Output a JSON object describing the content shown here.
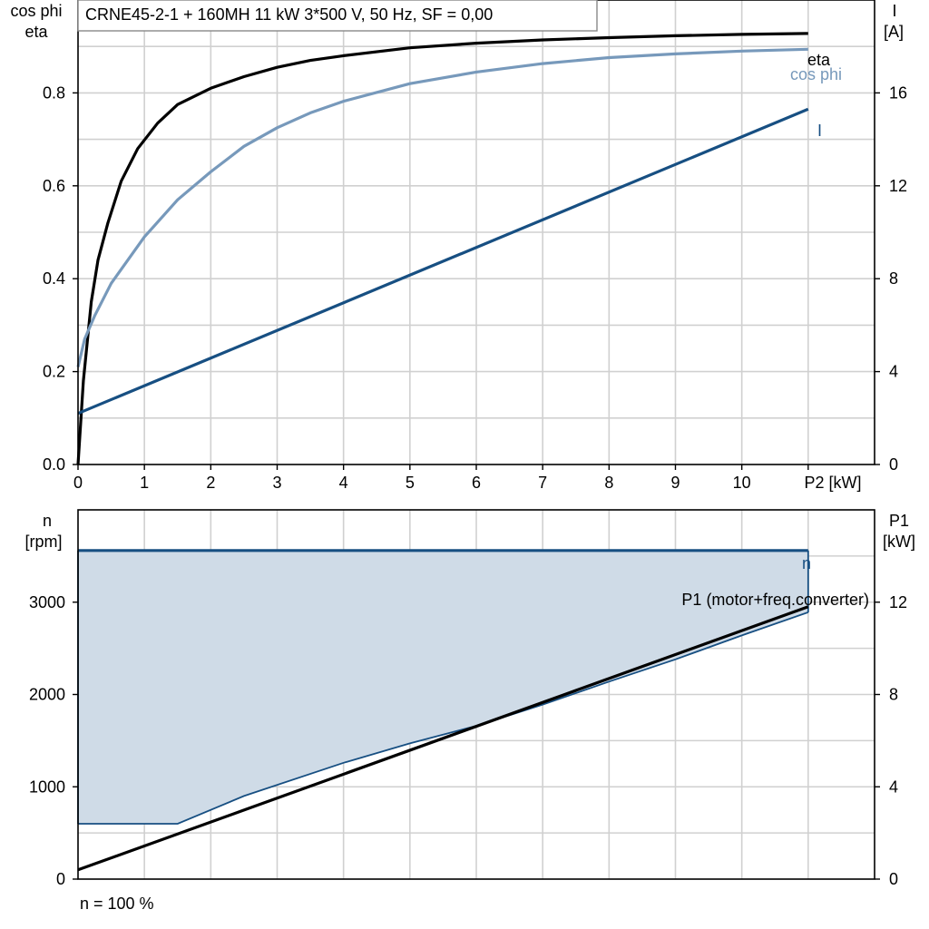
{
  "chart_data": [
    {
      "type": "line",
      "title": "CRNE45-2-1 + 160MH   11 kW   3*500 V, 50 Hz, SF = 0,00",
      "xlabel": "P2 [kW]",
      "ylabel_left": [
        "cos phi",
        "eta"
      ],
      "ylabel_right": [
        "I",
        "[A]"
      ],
      "x_ticks": [
        0,
        1,
        2,
        3,
        4,
        5,
        6,
        7,
        8,
        9,
        10
      ],
      "x_tick_labels": [
        "0",
        "1",
        "2",
        "3",
        "4",
        "5",
        "6",
        "7",
        "8",
        "9",
        "10"
      ],
      "xlim": [
        0,
        12
      ],
      "ylim_left": [
        0,
        1
      ],
      "ylim_right": [
        0,
        20
      ],
      "y_left_ticks": [
        0.0,
        0.2,
        0.4,
        0.6,
        0.8
      ],
      "y_left_tick_labels": [
        "0.0",
        "0.2",
        "0.4",
        "0.6",
        "0.8"
      ],
      "y_right_ticks": [
        0,
        4,
        8,
        12,
        16
      ],
      "y_right_tick_labels": [
        "0",
        "4",
        "8",
        "12",
        "16"
      ],
      "grid": true,
      "series": [
        {
          "name": "eta",
          "axis": "left",
          "color": "#000000",
          "x": [
            0,
            0.08,
            0.2,
            0.3,
            0.45,
            0.65,
            0.9,
            1.2,
            1.5,
            2,
            2.5,
            3,
            3.5,
            4,
            5,
            6,
            7,
            8,
            9,
            10,
            11
          ],
          "y": [
            0.0,
            0.18,
            0.35,
            0.44,
            0.52,
            0.61,
            0.68,
            0.735,
            0.775,
            0.81,
            0.835,
            0.855,
            0.87,
            0.88,
            0.897,
            0.907,
            0.914,
            0.919,
            0.923,
            0.926,
            0.928
          ]
        },
        {
          "name": "cos phi",
          "axis": "left",
          "color": "#7799bb",
          "x": [
            0,
            0.1,
            0.25,
            0.5,
            0.75,
            1,
            1.5,
            2,
            2.5,
            3,
            3.5,
            4,
            5,
            6,
            7,
            8,
            9,
            10,
            11
          ],
          "y": [
            0.21,
            0.27,
            0.32,
            0.39,
            0.44,
            0.49,
            0.57,
            0.63,
            0.685,
            0.725,
            0.757,
            0.782,
            0.82,
            0.845,
            0.863,
            0.876,
            0.884,
            0.89,
            0.894
          ]
        },
        {
          "name": "I",
          "axis": "right",
          "color": "#174f82",
          "x": [
            0,
            11
          ],
          "y": [
            2.2,
            15.3
          ]
        }
      ]
    },
    {
      "type": "line",
      "xlabel": "n = 100 %",
      "ylabel_left": [
        "n",
        "[rpm]"
      ],
      "ylabel_right": [
        "P1",
        "[kW]"
      ],
      "xlim": [
        0,
        12
      ],
      "ylim_left": [
        0,
        4000
      ],
      "ylim_right": [
        0,
        16
      ],
      "y_left_ticks": [
        0,
        1000,
        2000,
        3000
      ],
      "y_left_tick_labels": [
        "0",
        "1000",
        "2000",
        "3000"
      ],
      "y_right_ticks": [
        0,
        4,
        8,
        12
      ],
      "y_right_tick_labels": [
        "0",
        "4",
        "8",
        "12"
      ],
      "grid": true,
      "shaded_region": {
        "color": "#cfdbe7",
        "upper": {
          "x": [
            0,
            11
          ],
          "y": [
            3560,
            3560
          ]
        },
        "lower": {
          "x": [
            0,
            1.5,
            2.5,
            4,
            5,
            6,
            7,
            8,
            9,
            10,
            11
          ],
          "y": [
            600,
            600,
            900,
            1260,
            1470,
            1660,
            1890,
            2140,
            2380,
            2640,
            2890
          ]
        }
      },
      "series": [
        {
          "name": "n",
          "axis": "left",
          "color": "#174f82",
          "x": [
            0,
            11
          ],
          "y": [
            3560,
            3560
          ]
        },
        {
          "name": "P1 (motor+freq.converter)",
          "axis": "right",
          "color": "#000000",
          "x": [
            0,
            11
          ],
          "y": [
            0.4,
            11.8
          ]
        }
      ]
    }
  ]
}
